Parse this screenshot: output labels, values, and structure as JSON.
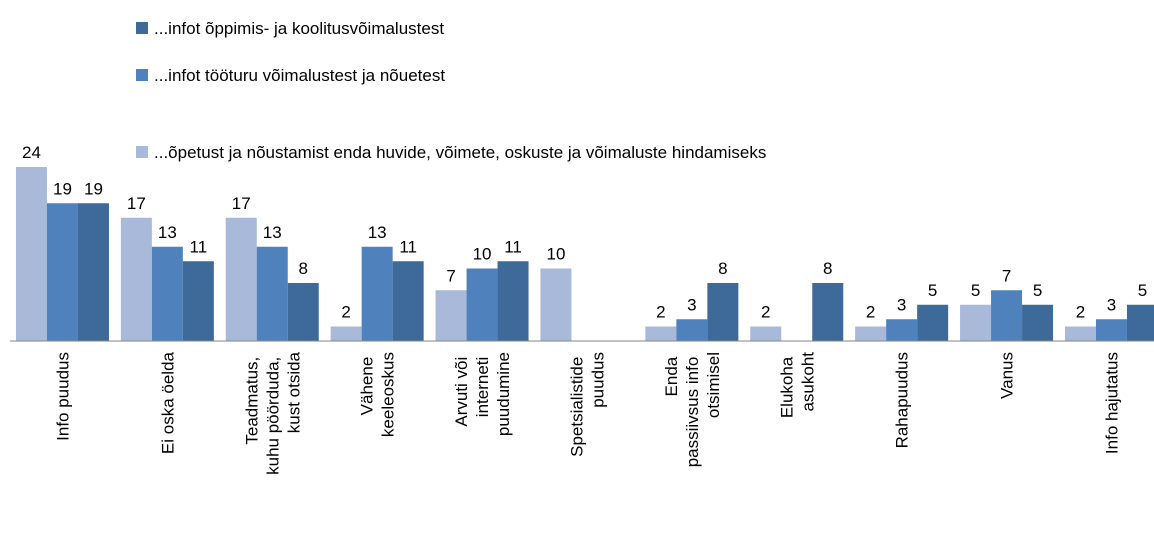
{
  "chart_data": {
    "type": "bar",
    "categories": [
      "Info puudus",
      "Ei oska öelda",
      "Teadmatus, kuhu pöörduda, kust otsida",
      "Vähene keeleoskus",
      "Arvuti või interneti puudumine",
      "Spetsialistide puudus",
      "Enda passiivsus info otsimisel",
      "Elukoha asukoht",
      "Rahapuudus",
      "Vanus",
      "Info hajutatus"
    ],
    "series": [
      {
        "name": "...infot õppimis- ja koolitusvõimalustest",
        "color": "#3d6a99",
        "values": [
          19,
          11,
          8,
          11,
          11,
          null,
          8,
          8,
          5,
          5,
          5
        ]
      },
      {
        "name": "...infot tööturu võimalustest ja nõuetest",
        "color": "#4f81bd",
        "values": [
          19,
          13,
          13,
          13,
          10,
          null,
          3,
          null,
          3,
          7,
          3
        ]
      },
      {
        "name": "...õpetust ja nõustamist enda huvide, võimete, oskuste ja võimaluste hindamiseks",
        "color": "#a8b9d9",
        "values": [
          24,
          17,
          17,
          2,
          7,
          10,
          2,
          2,
          2,
          5,
          2
        ]
      }
    ],
    "ylim": [
      0,
      24
    ]
  }
}
